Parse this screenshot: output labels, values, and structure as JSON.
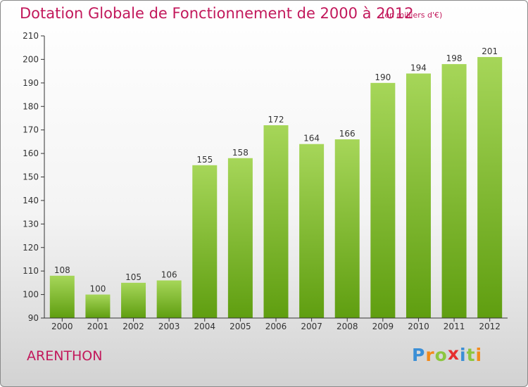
{
  "title": "Dotation Globale de Fonctionnement de 2000 à 2012",
  "subtitle": "(en milliers d'€)",
  "commune": "ARENTHON",
  "logo": {
    "letters": [
      "P",
      "r",
      "o",
      "x",
      "i",
      "t",
      "i"
    ],
    "colors": [
      "#3b8fd6",
      "#f28a1a",
      "#8cc63f",
      "#e62e2e",
      "#3b8fd6",
      "#8cc63f",
      "#f28a1a"
    ]
  },
  "colors": {
    "bar_top": "#a6d659",
    "bar_bottom": "#5f9e10",
    "accent": "#c2185b"
  },
  "chart_data": {
    "type": "bar",
    "categories": [
      "2000",
      "2001",
      "2002",
      "2003",
      "2004",
      "2005",
      "2006",
      "2007",
      "2008",
      "2009",
      "2010",
      "2011",
      "2012"
    ],
    "values": [
      108,
      100,
      105,
      106,
      155,
      158,
      172,
      164,
      166,
      190,
      194,
      198,
      201
    ],
    "title": "Dotation Globale de Fonctionnement de 2000 à 2012",
    "ylim": [
      90,
      210
    ],
    "yticks": [
      90,
      100,
      110,
      120,
      130,
      140,
      150,
      160,
      170,
      180,
      190,
      200,
      210
    ],
    "grid": false,
    "legend": "none"
  }
}
